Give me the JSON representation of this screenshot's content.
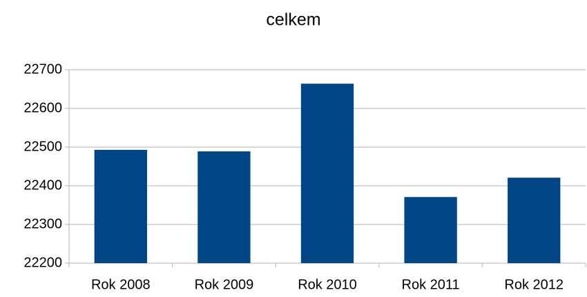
{
  "chart_data": {
    "type": "bar",
    "title": "celkem",
    "categories": [
      "Rok 2008",
      "Rok 2009",
      "Rok 2010",
      "Rok 2011",
      "Rok 2012"
    ],
    "values": [
      22493,
      22489,
      22664,
      22371,
      22421
    ],
    "color": "#004586",
    "ylim": [
      22200,
      22700
    ],
    "yticks": [
      22200,
      22300,
      22400,
      22500,
      22600,
      22700
    ],
    "grid": true
  }
}
